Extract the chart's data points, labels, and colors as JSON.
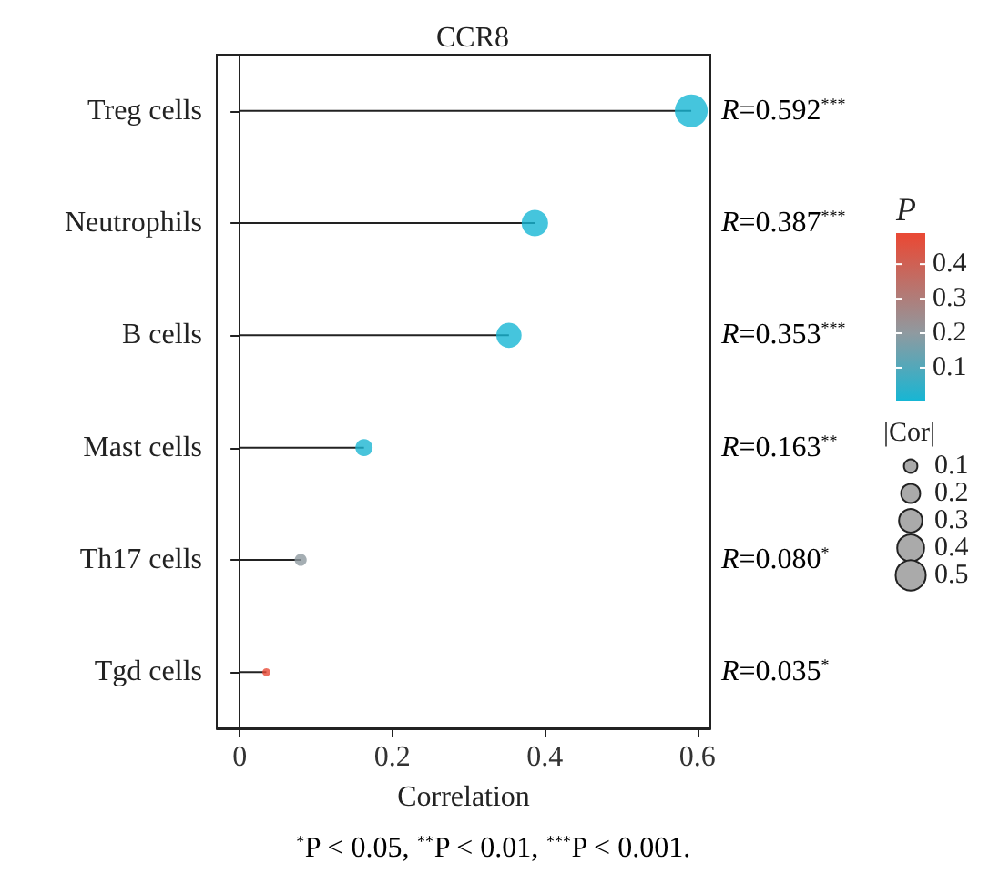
{
  "chart_data": {
    "type": "lollipop",
    "orientation": "horizontal",
    "title": "CCR8",
    "xlabel": "Correlation",
    "clabel": "P",
    "legend_title": "|Cor|",
    "categories": [
      "Treg cells",
      "Neutrophils",
      "B cells",
      "Mast cells",
      "Th17 cells",
      "Tgd cells"
    ],
    "values": [
      0.592,
      0.387,
      0.353,
      0.163,
      0.08,
      0.035
    ],
    "value_labels": [
      "R=0.592$^{***}$",
      "R=0.387$^{***}$",
      "R=0.353$^{***}$",
      "R=0.163$^{**}$",
      "R=0.080$^{*}$",
      "R=0.035$^{*}$"
    ],
    "cvalues": [
      0.01,
      0.01,
      0.01,
      0.01,
      0.2,
      0.48
    ],
    "clim": [
      0.005,
      0.49
    ],
    "cticks": [
      0.1,
      0.2,
      0.3,
      0.4
    ],
    "colors": [
      "#17b6d4",
      "#17b6d4",
      "#17b6d4",
      "#1bb5d2",
      "#8f9aa0",
      "#e84a36"
    ],
    "sizes": [
      0.592,
      0.387,
      0.353,
      0.163,
      0.08,
      0.035
    ],
    "size_legend": [
      0.1,
      0.2,
      0.3,
      0.4,
      0.5
    ],
    "xlim": [
      -0.03,
      0.617
    ],
    "xticks": [
      0,
      0.2,
      0.4,
      0.6
    ],
    "ref_lines": [
      {
        "axis": "x",
        "value": 0
      }
    ],
    "annotations": [
      "$^{*}$P < 0.05, $^{**}$P < 0.01, $^{***}$P < 0.001."
    ],
    "grid": false
  }
}
